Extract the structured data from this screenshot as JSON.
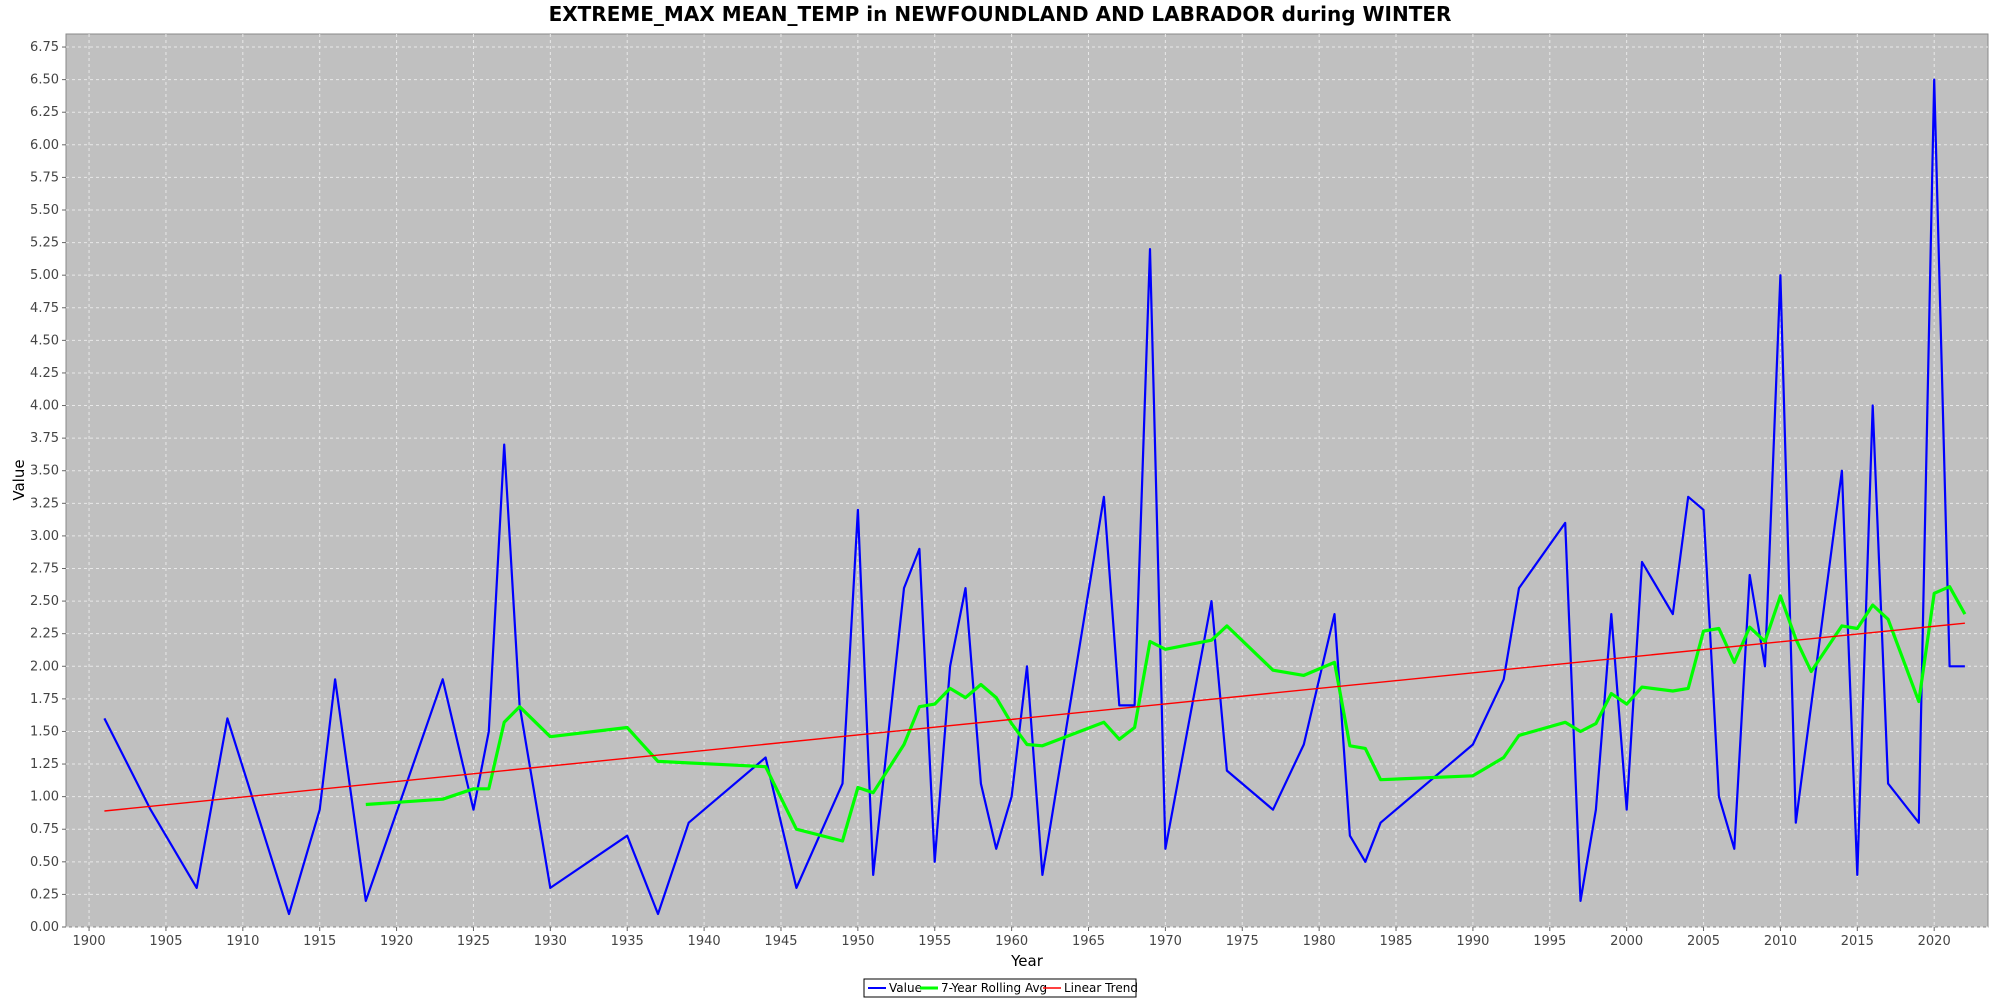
{
  "chart_data": {
    "type": "line",
    "title": "EXTREME_MAX MEAN_TEMP in NEWFOUNDLAND AND LABRADOR during WINTER",
    "xlabel": "Year",
    "ylabel": "Value",
    "xlim": [
      1898.5,
      2023.5
    ],
    "ylim": [
      0,
      6.85
    ],
    "x_ticks": [
      1900,
      1905,
      1910,
      1915,
      1920,
      1925,
      1930,
      1935,
      1940,
      1945,
      1950,
      1955,
      1960,
      1965,
      1970,
      1975,
      1980,
      1985,
      1990,
      1995,
      2000,
      2005,
      2010,
      2015,
      2020
    ],
    "y_ticks": [
      "0.00",
      "0.25",
      "0.50",
      "0.75",
      "1.00",
      "1.25",
      "1.50",
      "1.75",
      "2.00",
      "2.25",
      "2.50",
      "2.75",
      "3.00",
      "3.25",
      "3.50",
      "3.75",
      "4.00",
      "4.25",
      "4.50",
      "4.75",
      "5.00",
      "5.25",
      "5.50",
      "5.75",
      "6.00",
      "6.25",
      "6.50",
      "6.75"
    ],
    "grid": true,
    "legend_position": "bottom-center",
    "colors": {
      "plot_background": "#c0c0c0",
      "grid": "#e8e8e8",
      "value": "#0000ff",
      "rolling": "#00ff00",
      "trend": "#ff0000"
    },
    "series": [
      {
        "name": "Value",
        "color": "#0000ff",
        "x": [
          1901,
          1904,
          1907,
          1909,
          1913,
          1915,
          1916,
          1918,
          1923,
          1925,
          1926,
          1927,
          1928,
          1930,
          1935,
          1937,
          1939,
          1944,
          1946,
          1949,
          1950,
          1951,
          1953,
          1954,
          1955,
          1956,
          1957,
          1958,
          1959,
          1960,
          1961,
          1962,
          1966,
          1967,
          1968,
          1969,
          1970,
          1973,
          1974,
          1977,
          1979,
          1981,
          1982,
          1983,
          1984,
          1990,
          1992,
          1993,
          1996,
          1997,
          1998,
          1999,
          2000,
          2001,
          2003,
          2004,
          2005,
          2006,
          2007,
          2008,
          2009,
          2010,
          2011,
          2014,
          2015,
          2016,
          2017,
          2019,
          2020,
          2021,
          2022
        ],
        "y": [
          1.6,
          0.9,
          0.3,
          1.6,
          0.1,
          0.9,
          1.9,
          0.2,
          1.9,
          0.9,
          1.5,
          3.7,
          1.7,
          0.3,
          0.7,
          0.1,
          0.8,
          1.3,
          0.3,
          1.1,
          3.2,
          0.4,
          2.6,
          2.9,
          0.5,
          2.0,
          2.6,
          1.1,
          0.6,
          1.0,
          2.0,
          0.4,
          3.3,
          1.7,
          1.7,
          5.2,
          0.6,
          2.5,
          1.2,
          0.9,
          1.4,
          2.4,
          0.7,
          0.5,
          0.8,
          1.4,
          1.9,
          2.6,
          3.1,
          0.2,
          0.9,
          2.4,
          0.9,
          2.8,
          2.4,
          3.3,
          3.2,
          1.0,
          0.6,
          2.7,
          2.0,
          5.0,
          0.8,
          3.5,
          0.4,
          4.0,
          1.1,
          0.8,
          6.5,
          2.0,
          2.0
        ]
      },
      {
        "name": "7-Year Rolling Avg",
        "color": "#00ff00",
        "x": [
          1918,
          1923,
          1925,
          1926,
          1927,
          1928,
          1930,
          1935,
          1937,
          1944,
          1946,
          1949,
          1950,
          1951,
          1953,
          1954,
          1955,
          1956,
          1957,
          1958,
          1959,
          1960,
          1961,
          1962,
          1966,
          1967,
          1968,
          1969,
          1970,
          1973,
          1974,
          1977,
          1979,
          1981,
          1982,
          1983,
          1984,
          1990,
          1992,
          1993,
          1996,
          1997,
          1998,
          1999,
          2000,
          2001,
          2003,
          2004,
          2005,
          2006,
          2007,
          2008,
          2009,
          2010,
          2011,
          2012,
          2014,
          2015,
          2016,
          2017,
          2019,
          2020,
          2021,
          2022
        ],
        "y": [
          0.94,
          0.98,
          1.06,
          1.06,
          1.57,
          1.69,
          1.46,
          1.53,
          1.27,
          1.23,
          0.75,
          0.66,
          1.07,
          1.03,
          1.4,
          1.69,
          1.71,
          1.83,
          1.76,
          1.86,
          1.76,
          1.56,
          1.4,
          1.39,
          1.57,
          1.44,
          1.53,
          2.19,
          2.13,
          2.2,
          2.31,
          1.97,
          1.93,
          2.03,
          1.39,
          1.37,
          1.13,
          1.16,
          1.3,
          1.47,
          1.57,
          1.5,
          1.56,
          1.79,
          1.71,
          1.84,
          1.81,
          1.83,
          2.27,
          2.29,
          2.03,
          2.3,
          2.19,
          2.54,
          2.21,
          1.96,
          2.31,
          2.29,
          2.47,
          2.36,
          1.73,
          2.56,
          2.61,
          2.4
        ]
      },
      {
        "name": "Linear Trend",
        "color": "#ff0000",
        "x": [
          1901,
          2022
        ],
        "y": [
          0.89,
          2.33
        ]
      }
    ]
  }
}
